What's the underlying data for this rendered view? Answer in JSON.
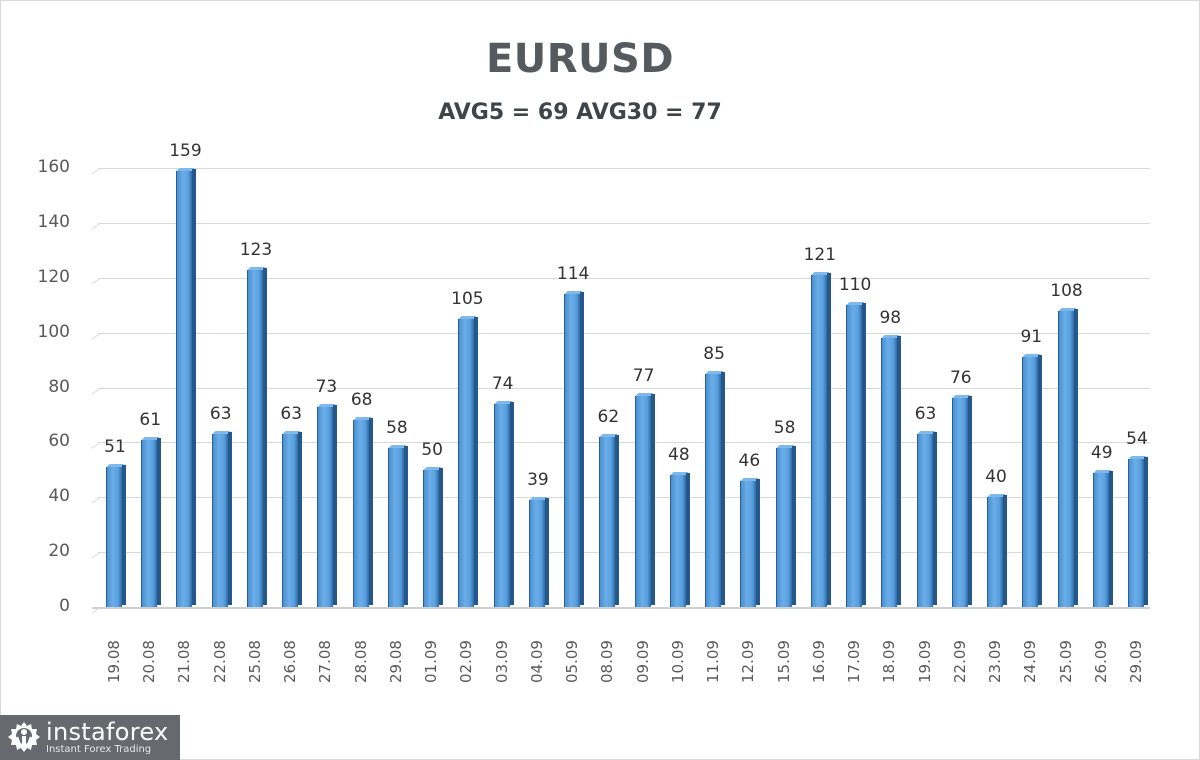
{
  "chart_data": {
    "type": "bar",
    "title": "EURUSD",
    "subtitle": "AVG5 = 69 AVG30 = 77",
    "xlabel": "",
    "ylabel": "",
    "ylim": [
      0,
      160
    ],
    "yticks": [
      0,
      20,
      40,
      60,
      80,
      100,
      120,
      140,
      160
    ],
    "grid": true,
    "legend": null,
    "style": "3d-column",
    "bar_color": "#5b9bd5",
    "categories": [
      "19.08",
      "20.08",
      "21.08",
      "22.08",
      "25.08",
      "26.08",
      "27.08",
      "28.08",
      "29.08",
      "01.09",
      "02.09",
      "03.09",
      "04.09",
      "05.09",
      "08.09",
      "09.09",
      "10.09",
      "11.09",
      "12.09",
      "15.09",
      "16.09",
      "17.09",
      "18.09",
      "19.09",
      "22.09",
      "23.09",
      "24.09",
      "25.09",
      "26.09",
      "29.09"
    ],
    "values": [
      51,
      61,
      159,
      63,
      123,
      63,
      73,
      68,
      58,
      50,
      105,
      74,
      39,
      114,
      62,
      77,
      48,
      85,
      46,
      58,
      121,
      110,
      98,
      63,
      76,
      40,
      91,
      108,
      49,
      54
    ],
    "averages": {
      "AVG5": 69,
      "AVG30": 77
    }
  },
  "watermark": {
    "brand": "instaforex",
    "tagline": "Instant Forex Trading",
    "icon": "gear-person-logo-icon"
  }
}
